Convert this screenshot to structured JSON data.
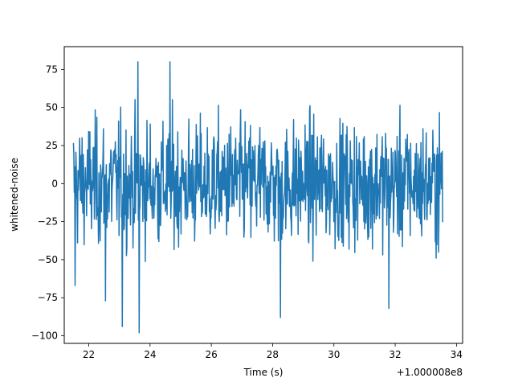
{
  "chart_data": {
    "type": "line",
    "title": "",
    "xlabel": "Time (s)",
    "ylabel": "whitened-noise",
    "x_offset_label": "+1.000008e8",
    "xlim": [
      21.2,
      34.2
    ],
    "ylim": [
      -105,
      90
    ],
    "x_ticks": [
      22,
      24,
      26,
      28,
      30,
      32,
      34
    ],
    "y_ticks": [
      -100,
      -75,
      -50,
      -25,
      0,
      25,
      50,
      75
    ],
    "x_tick_labels": [
      "22",
      "24",
      "26",
      "28",
      "30",
      "32",
      "34"
    ],
    "y_tick_labels": [
      "−100",
      "−75",
      "−50",
      "−25",
      "0",
      "25",
      "50",
      "75"
    ],
    "grid": false,
    "legend": "none",
    "series": [
      {
        "color": "#1f77b4",
        "x_start": 21.5,
        "x_end": 33.55,
        "sample_count": 900,
        "noise_std": 20,
        "envelope_peaks": [
          {
            "x": 23.6,
            "y": 80
          },
          {
            "x": 24.65,
            "y": 80
          },
          {
            "x": 23.65,
            "y": -98
          },
          {
            "x": 23.1,
            "y": -94
          },
          {
            "x": 28.25,
            "y": -88
          },
          {
            "x": 31.8,
            "y": -82
          },
          {
            "x": 22.55,
            "y": -77
          },
          {
            "x": 21.55,
            "y": -67
          }
        ]
      }
    ]
  }
}
